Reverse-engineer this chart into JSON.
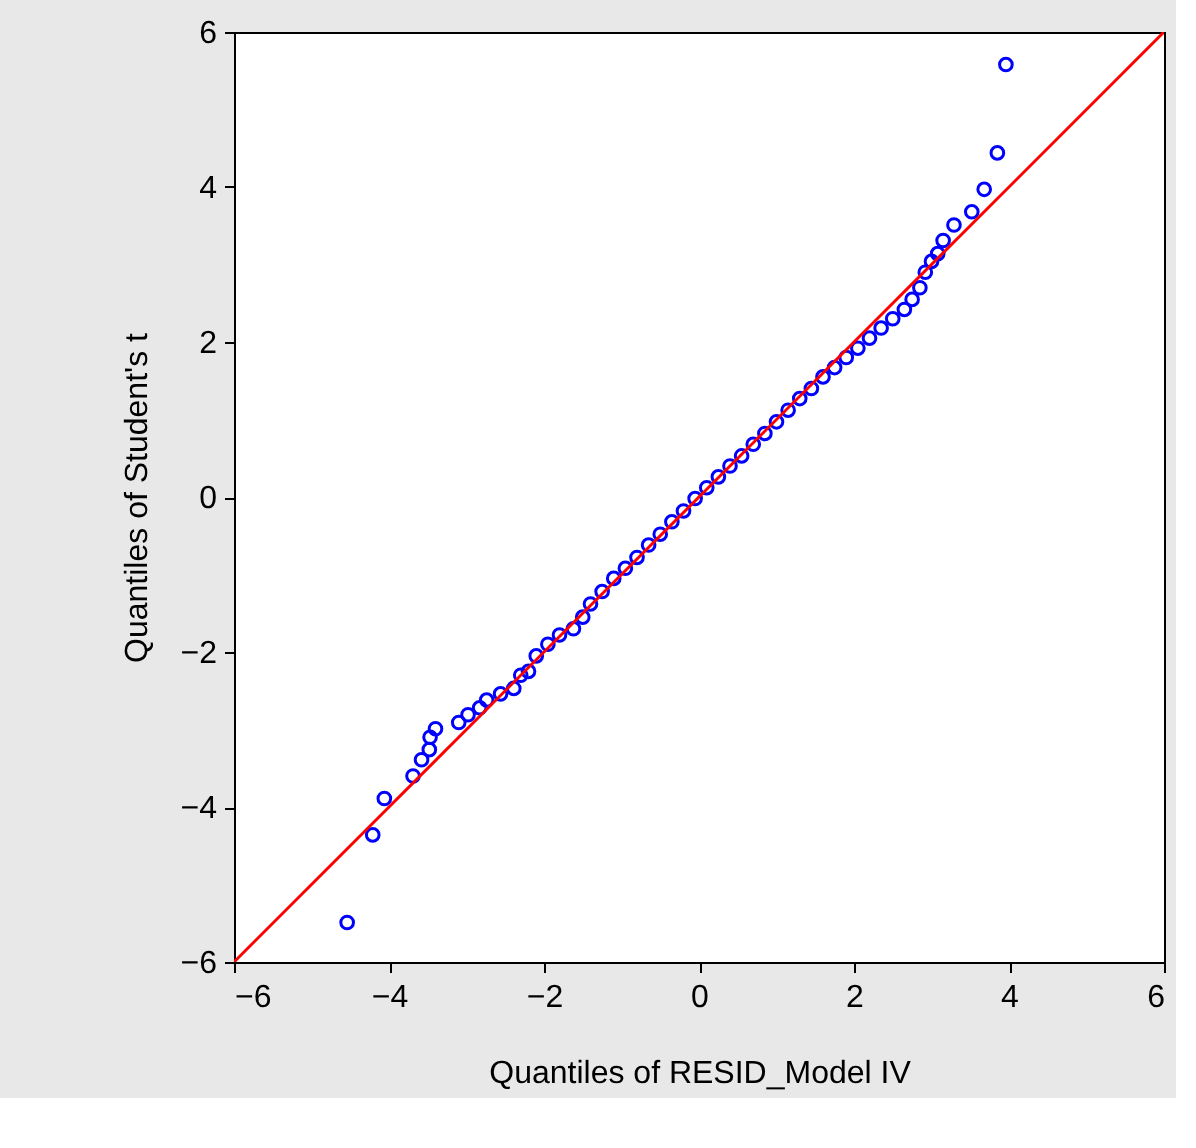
{
  "chart_data": {
    "type": "scatter",
    "xlabel": "Quantiles of RESID_Model IV",
    "ylabel": "Quantiles of Student's t",
    "xlim": [
      -6,
      6
    ],
    "ylim": [
      -6,
      6
    ],
    "xticks": [
      -6,
      -4,
      -2,
      0,
      2,
      4,
      6
    ],
    "yticks": [
      -6,
      -4,
      -2,
      0,
      2,
      4,
      6
    ],
    "grid": false,
    "series": [
      {
        "marker": "circle",
        "color": "#0000ff",
        "x": [
          -4.54,
          -4.21,
          -4.06,
          -3.69,
          -3.58,
          -3.48,
          -3.47,
          -3.4,
          -3.1,
          -2.98,
          -2.83,
          -2.74,
          -2.56,
          -2.39,
          -2.3,
          -2.2,
          -2.1,
          -1.95,
          -1.8,
          -1.62,
          -1.5,
          -1.4,
          -1.25,
          -1.1,
          -0.95,
          -0.8,
          -0.65,
          -0.5,
          -0.35,
          -0.2,
          -0.05,
          0.1,
          0.25,
          0.4,
          0.55,
          0.7,
          0.85,
          1.0,
          1.15,
          1.3,
          1.45,
          1.6,
          1.75,
          1.9,
          2.05,
          2.2,
          2.35,
          2.5,
          2.65,
          2.75,
          2.85,
          2.92,
          3.0,
          3.08,
          3.15,
          3.29,
          3.52,
          3.68,
          3.85,
          3.96
        ],
        "values": [
          -5.49,
          -4.36,
          -3.89,
          -3.6,
          -3.39,
          -3.26,
          -3.1,
          -2.99,
          -2.91,
          -2.81,
          -2.72,
          -2.62,
          -2.54,
          -2.47,
          -2.3,
          -2.25,
          -2.05,
          -1.9,
          -1.78,
          -1.7,
          -1.55,
          -1.38,
          -1.22,
          -1.05,
          -0.92,
          -0.78,
          -0.62,
          -0.48,
          -0.32,
          -0.18,
          -0.02,
          0.12,
          0.26,
          0.4,
          0.53,
          0.68,
          0.82,
          0.97,
          1.12,
          1.27,
          1.4,
          1.55,
          1.67,
          1.8,
          1.92,
          2.05,
          2.18,
          2.3,
          2.42,
          2.55,
          2.7,
          2.9,
          3.04,
          3.14,
          3.31,
          3.51,
          3.68,
          3.97,
          4.44,
          5.58
        ]
      },
      {
        "type": "line",
        "marker": "none",
        "line_style": "solid",
        "color": "#ff0000",
        "x": [
          -6,
          6
        ],
        "values": [
          -6,
          6
        ]
      }
    ]
  }
}
